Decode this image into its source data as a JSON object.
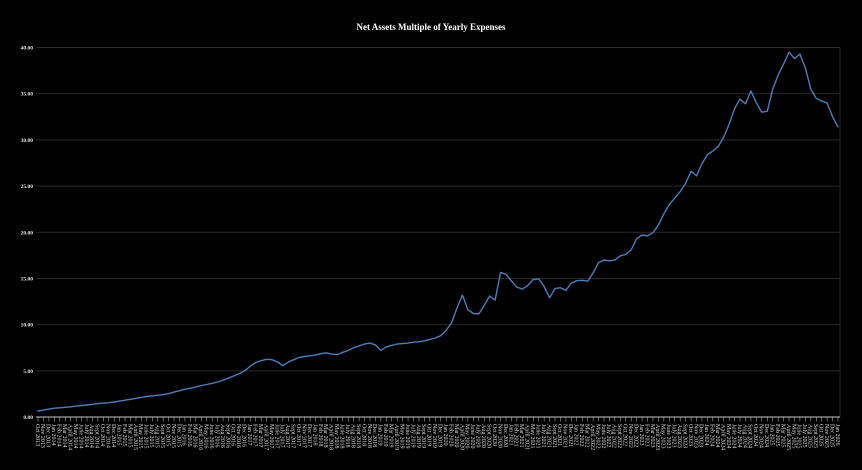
{
  "page": {
    "background": "#000000"
  },
  "colors": {
    "line": "#4a7ebc",
    "grid": "#2a2a2a",
    "frame": "#262626",
    "axis": "#c8c8c8",
    "tick_label": "#dcdcdc",
    "title": "#ffffff"
  },
  "chart_data": {
    "type": "line",
    "title": "Net Assets Multiple of Yearly Expenses",
    "xlabel": "",
    "ylabel": "",
    "legend": "none",
    "grid": "horizontal",
    "ylim": [
      0,
      40
    ],
    "y_ticks": [
      "0.00",
      "5.00",
      "10.00",
      "15.00",
      "20.00",
      "25.00",
      "30.00",
      "35.00",
      "40.00"
    ],
    "x": [
      "Oct 2013",
      "Nov 2013",
      "Dec 2013",
      "Jan 2014",
      "Feb 2014",
      "Mar 2014",
      "April 2014",
      "May 2014",
      "June 2014",
      "July 2014",
      "Aug 2014",
      "Sept 2014",
      "Oct 2014",
      "Nov 2014",
      "Dec 2014",
      "Jan 2015",
      "Feb 2015",
      "Mar 2015",
      "April 2015",
      "May 2015",
      "June 2015",
      "July 2015",
      "Aug 2015",
      "Sept 2015",
      "Oct 2015",
      "Nov 2015",
      "Dec 2015",
      "Jan 2016",
      "Feb 2016",
      "Mar 2016",
      "April 2016",
      "May 2016",
      "June 2016",
      "July 2016",
      "Aug 2016",
      "Sept 2016",
      "Oct 2016",
      "Nov 2016",
      "Dec 2016",
      "Jan 2017",
      "Feb 2017",
      "Mar 2017",
      "April 2017",
      "May 2017",
      "June 2017",
      "July 2017",
      "Aug 2017",
      "Sept 2017",
      "Oct 2017",
      "Nov 2017",
      "Dec 2017",
      "Jan 2018",
      "Feb 2018",
      "Mar 2018",
      "April 2018",
      "May 2018",
      "June 2018",
      "July 2018",
      "Aug 2018",
      "Sept 2018",
      "Oct 2018",
      "Nov 2018",
      "Dec 2018",
      "Jan 2019",
      "Feb 2019",
      "Mar 2019",
      "April 2019",
      "May 2019",
      "June 2019",
      "July 2019",
      "Aug 2019",
      "Sept 2019",
      "Oct 2019",
      "Nov 2019",
      "Dec 2019",
      "Jan 2020",
      "Feb 2020",
      "Mar 2020",
      "April 2020",
      "May 2020",
      "June 2020",
      "July 2020",
      "Aug 2020",
      "Sept 2020",
      "Oct 2020",
      "Nov 2020",
      "Dec 2020",
      "Jan 2021",
      "Feb 2021",
      "Mar 2021",
      "April 2021",
      "May 2021",
      "June 2021",
      "July 2021",
      "Aug 2021",
      "Sept 2021",
      "Oct 2021",
      "Nov 2021",
      "Dec 2021",
      "Jan 2022",
      "Feb 2022",
      "Mar 2022",
      "April 2022",
      "May 2022",
      "June 2022",
      "July 2022",
      "Aug 2022",
      "Sept 2022",
      "Oct 2022",
      "Nov 2022",
      "Dec 2022",
      "Jan 2023",
      "Feb 2023",
      "Mar 2023",
      "April 2023",
      "May 2023",
      "June 2023",
      "July 2023",
      "Aug 2023",
      "Sept 2023",
      "Oct 2023",
      "Nov 2023",
      "Dec 2023",
      "Jan 2024",
      "Feb 2024",
      "Mar 2024",
      "April 2024",
      "May 2024",
      "June 2024",
      "July 2024",
      "Aug 2024",
      "Sept 2024",
      "Oct 2024",
      "Nov 2024",
      "Dec 2024",
      "Jan 2025",
      "Feb 2025",
      "Mar 2025",
      "April 2025",
      "May 2025",
      "June 2025",
      "July 2025",
      "Aug 2025",
      "Sept 2025",
      "Oct 2025",
      "Nov 2025",
      "Dec 2025",
      "Jan 2026"
    ],
    "series": [
      {
        "name": "Net Assets Multiple of Yearly Expenses",
        "values": [
          0.65,
          0.75,
          0.85,
          0.95,
          1.0,
          1.05,
          1.1,
          1.18,
          1.25,
          1.3,
          1.38,
          1.45,
          1.5,
          1.55,
          1.62,
          1.72,
          1.82,
          1.92,
          2.02,
          2.12,
          2.22,
          2.3,
          2.36,
          2.42,
          2.52,
          2.7,
          2.85,
          3.0,
          3.12,
          3.25,
          3.4,
          3.52,
          3.65,
          3.78,
          4.0,
          4.2,
          4.45,
          4.7,
          5.0,
          5.5,
          5.9,
          6.1,
          6.25,
          6.2,
          5.95,
          5.55,
          5.95,
          6.2,
          6.45,
          6.55,
          6.62,
          6.72,
          6.85,
          6.95,
          6.8,
          6.75,
          7.0,
          7.2,
          7.5,
          7.7,
          7.9,
          8.0,
          7.8,
          7.2,
          7.6,
          7.75,
          7.9,
          7.95,
          8.0,
          8.1,
          8.15,
          8.25,
          8.4,
          8.55,
          8.8,
          9.4,
          10.2,
          11.8,
          13.2,
          11.6,
          11.2,
          11.15,
          12.1,
          13.1,
          12.65,
          15.65,
          15.45,
          14.7,
          14.05,
          13.85,
          14.25,
          14.9,
          14.95,
          14.15,
          12.9,
          13.9,
          14.0,
          13.7,
          14.5,
          14.75,
          14.8,
          14.7,
          15.6,
          16.7,
          17.0,
          16.9,
          17.0,
          17.45,
          17.6,
          18.1,
          19.3,
          19.7,
          19.6,
          19.95,
          20.8,
          22.0,
          23.0,
          23.7,
          24.4,
          25.3,
          26.6,
          26.1,
          27.4,
          28.4,
          28.8,
          29.3,
          30.3,
          31.7,
          33.4,
          34.4,
          33.9,
          35.3,
          34.0,
          33.0,
          33.1,
          35.5,
          37.0,
          38.2,
          39.5,
          38.8,
          39.3,
          37.8,
          35.5,
          34.5,
          34.2,
          34.0,
          32.5,
          31.4
        ]
      }
    ]
  }
}
